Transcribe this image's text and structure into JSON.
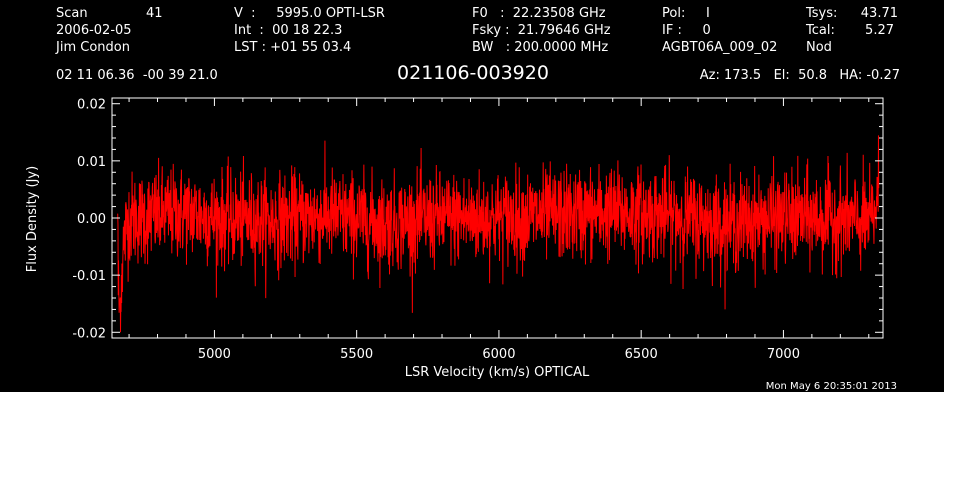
{
  "header": {
    "scan_label": "Scan",
    "scan_value": "41",
    "date": "2006-02-05",
    "observer": "Jim Condon",
    "velocity": "V  :     5995.0 OPTI-LSR",
    "integration": "Int  :  00 18 22.3",
    "lst": "LST : +01 55 03.4",
    "f0": "F0   :  22.23508 GHz",
    "fsky": "Fsky :  21.79646 GHz",
    "bw": "BW   : 200.0000 MHz",
    "pol": "Pol:     I",
    "if": "IF :     0",
    "project": "AGBT06A_009_02",
    "tsys_label": "Tsys:",
    "tsys_value": "43.71",
    "tcal_label": "Tcal:",
    "tcal_value": "5.27",
    "procedure": "Nod",
    "coords": "02 11 06.36  -00 39 21.0",
    "source": "021106-003920",
    "pointing": "Az: 173.5   El:  50.8   HA: -0.27"
  },
  "footer": {
    "timestamp": "Mon May  6 20:35:01 2013"
  },
  "colors": {
    "background": "#000000",
    "axes": "#ffffff",
    "trace": "#ff0000"
  },
  "chart_data": {
    "type": "line",
    "xlabel": "LSR Velocity (km/s) OPTICAL",
    "ylabel": "Flux Density (Jy)",
    "xlim": [
      4640,
      7350
    ],
    "ylim": [
      -0.021,
      0.021
    ],
    "xticks": [
      5000,
      5500,
      6000,
      6500,
      7000
    ],
    "xtick_labels": [
      "5000",
      "5500",
      "6000",
      "6500",
      "7000"
    ],
    "yticks": [
      -0.02,
      -0.01,
      0.0,
      0.01,
      0.02
    ],
    "ytick_labels": [
      "-0.02",
      "-0.01",
      "0.00",
      "0.01",
      "0.02"
    ],
    "series": [
      {
        "noise_sigma": 0.004,
        "x": [
          4660,
          4662,
          4665,
          4668,
          4672,
          4676,
          4680,
          4690,
          4700,
          4750,
          4800,
          4900,
          5000,
          5200,
          5400,
          5600,
          5800,
          6000,
          6200,
          6400,
          6600,
          6800,
          7000,
          7200,
          7300,
          7320,
          7330,
          7335
        ],
        "y": [
          0.002,
          -0.012,
          -0.015,
          -0.016,
          -0.012,
          -0.008,
          -0.005,
          -0.002,
          0.0,
          0.0,
          0.0005,
          0.001,
          0.0,
          -0.0005,
          0.0005,
          -0.001,
          0.0,
          0.0,
          0.0005,
          0.001,
          0.0005,
          -0.001,
          0.0,
          0.0,
          -0.001,
          0.001,
          0.003,
          0.006
        ]
      }
    ]
  }
}
